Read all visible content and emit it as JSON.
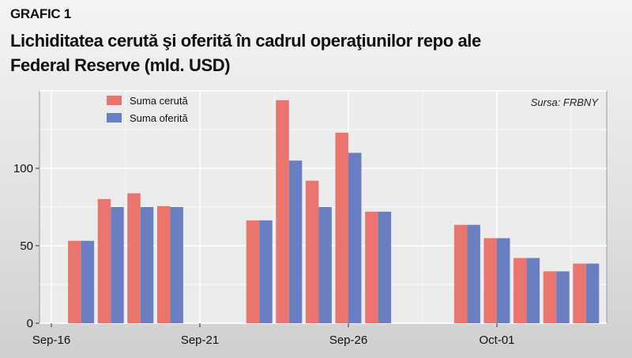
{
  "header": {
    "label": "GRAFIC 1",
    "title_line1": "Lichiditatea cerută şi oferită în cadrul operaţiunilor repo ale",
    "title_line2": "Federal Reserve (mld. USD)"
  },
  "source": "Sursa: FRBNY",
  "colors": {
    "demanded": "#ea756e",
    "offered": "#6a7fc1",
    "plot_bg": "#ececec",
    "grid": "#ffffff"
  },
  "chart_data": {
    "type": "bar",
    "title": "Lichiditatea cerută şi oferită în cadrul operaţiunilor repo ale Federal Reserve (mld. USD)",
    "xlabel": "",
    "ylabel": "",
    "ylim": [
      0,
      150
    ],
    "yticks": [
      0,
      50,
      100
    ],
    "xticks": [
      "Sep-16",
      "Sep-21",
      "Sep-26",
      "Oct-01"
    ],
    "legend": "top-left",
    "grid": true,
    "categories": [
      "Sep-17",
      "Sep-18",
      "Sep-19",
      "Sep-20",
      "Sep-23",
      "Sep-24",
      "Sep-25",
      "Sep-26",
      "Sep-27",
      "Sep-30",
      "Oct-01",
      "Oct-02",
      "Oct-03",
      "Oct-04"
    ],
    "series": [
      {
        "name": "Suma cerută",
        "values": [
          53.2,
          80.2,
          83.9,
          75.6,
          66.4,
          144.0,
          92.0,
          123.0,
          72.0,
          63.5,
          54.9,
          42.1,
          33.5,
          38.5
        ]
      },
      {
        "name": "Suma oferită",
        "values": [
          53.2,
          75.0,
          75.0,
          75.0,
          66.4,
          105.0,
          75.0,
          110.0,
          72.0,
          63.5,
          54.9,
          42.1,
          33.5,
          38.5
        ]
      }
    ]
  }
}
